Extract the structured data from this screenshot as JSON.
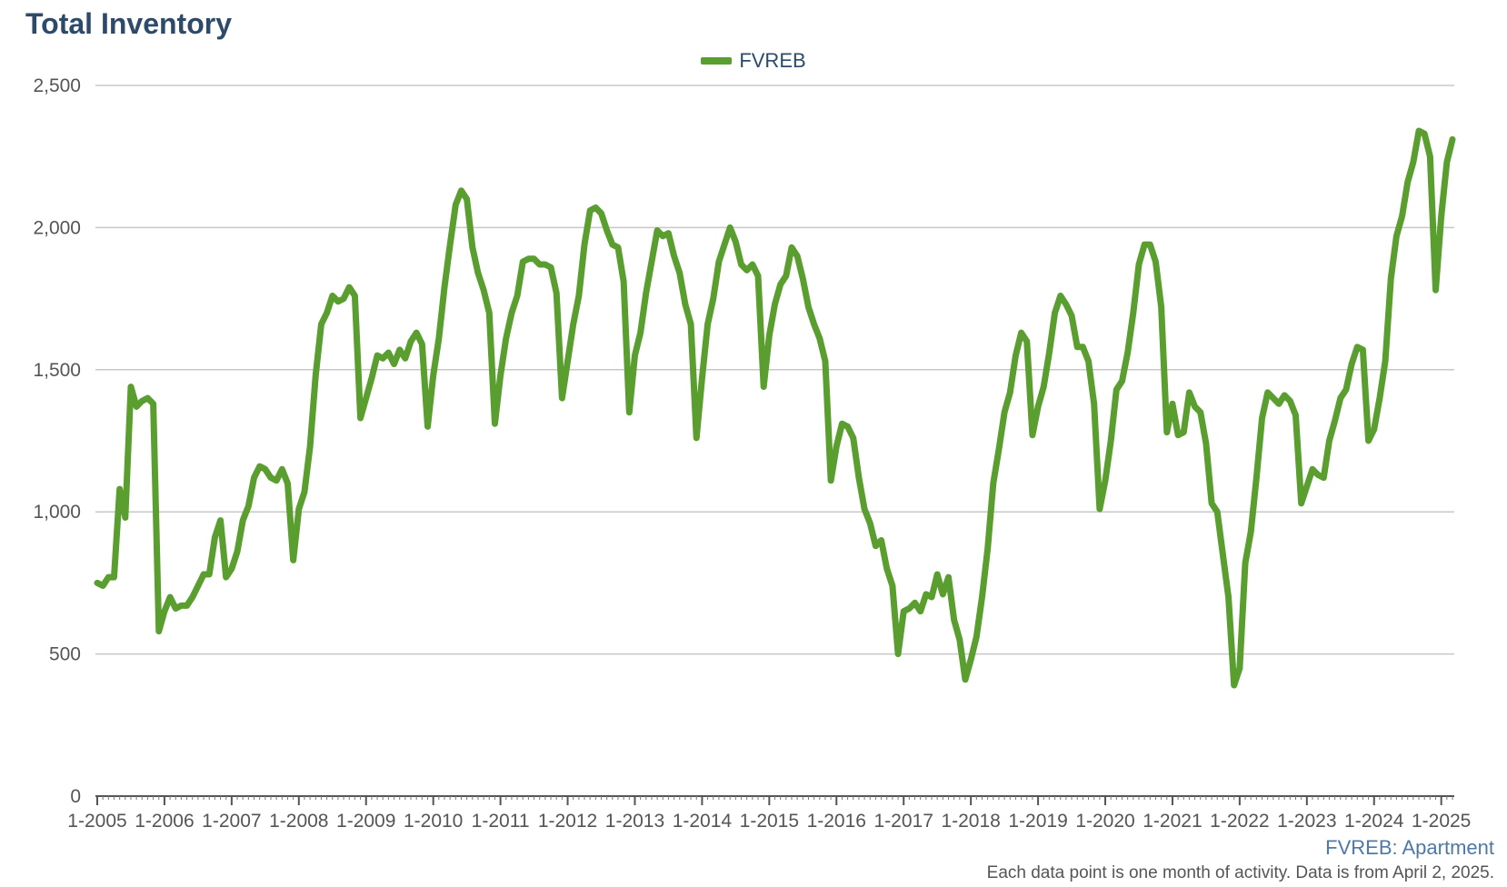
{
  "chart_data": {
    "type": "line",
    "title": "Total Inventory",
    "xlabel": "",
    "ylabel": "",
    "ylim": [
      0,
      2500
    ],
    "y_ticks": [
      0,
      500,
      1000,
      1500,
      2000,
      2500
    ],
    "y_tick_labels": [
      "0",
      "500",
      "1,000",
      "1,500",
      "2,000",
      "2,500"
    ],
    "x_tick_labels": [
      "1-2005",
      "1-2006",
      "1-2007",
      "1-2008",
      "1-2009",
      "1-2010",
      "1-2011",
      "1-2012",
      "1-2013",
      "1-2014",
      "1-2015",
      "1-2016",
      "1-2017",
      "1-2018",
      "1-2019",
      "1-2020",
      "1-2021",
      "1-2022",
      "1-2023",
      "1-2024",
      "1-2025"
    ],
    "x_start": "2005-01",
    "x_end": "2025-03",
    "grid": true,
    "legend_position": "top-center",
    "color": "#5a9e2f",
    "series": [
      {
        "name": "FVREB",
        "values": [
          750,
          740,
          770,
          770,
          1080,
          980,
          1440,
          1370,
          1390,
          1400,
          1380,
          580,
          650,
          700,
          660,
          670,
          670,
          700,
          740,
          780,
          780,
          910,
          970,
          770,
          800,
          860,
          970,
          1020,
          1120,
          1160,
          1150,
          1120,
          1110,
          1150,
          1100,
          830,
          1010,
          1070,
          1230,
          1480,
          1660,
          1700,
          1760,
          1740,
          1750,
          1790,
          1760,
          1330,
          1400,
          1470,
          1550,
          1540,
          1560,
          1520,
          1570,
          1540,
          1600,
          1630,
          1590,
          1300,
          1480,
          1610,
          1790,
          1940,
          2080,
          2130,
          2100,
          1930,
          1840,
          1780,
          1700,
          1310,
          1480,
          1610,
          1700,
          1760,
          1880,
          1890,
          1890,
          1870,
          1870,
          1860,
          1770,
          1400,
          1530,
          1660,
          1760,
          1940,
          2060,
          2070,
          2050,
          1990,
          1940,
          1930,
          1810,
          1350,
          1550,
          1630,
          1770,
          1880,
          1990,
          1970,
          1980,
          1900,
          1840,
          1730,
          1660,
          1260,
          1470,
          1660,
          1750,
          1880,
          1940,
          2000,
          1950,
          1870,
          1850,
          1870,
          1830,
          1440,
          1620,
          1730,
          1800,
          1830,
          1930,
          1900,
          1820,
          1720,
          1660,
          1610,
          1530,
          1110,
          1230,
          1310,
          1300,
          1260,
          1120,
          1010,
          960,
          880,
          900,
          800,
          740,
          500,
          650,
          660,
          680,
          650,
          710,
          700,
          780,
          710,
          770,
          620,
          550,
          410,
          480,
          560,
          700,
          870,
          1100,
          1220,
          1350,
          1420,
          1550,
          1630,
          1600,
          1270,
          1370,
          1440,
          1560,
          1700,
          1760,
          1730,
          1690,
          1580,
          1580,
          1530,
          1380,
          1010,
          1110,
          1250,
          1430,
          1460,
          1560,
          1700,
          1870,
          1940,
          1940,
          1880,
          1720,
          1280,
          1380,
          1270,
          1280,
          1420,
          1370,
          1350,
          1240,
          1030,
          1000,
          850,
          700,
          390,
          450,
          820,
          930,
          1120,
          1330,
          1420,
          1400,
          1380,
          1410,
          1390,
          1340,
          1030,
          1090,
          1150,
          1130,
          1120,
          1250,
          1320,
          1400,
          1430,
          1520,
          1580,
          1570,
          1250,
          1290,
          1400,
          1530,
          1820,
          1970,
          2040,
          2160,
          2230,
          2340,
          2330,
          2250,
          1780,
          2040,
          2230,
          2310
        ]
      }
    ],
    "source_label": "FVREB: Apartment",
    "footnote": "Each data point is one month of activity. Data is from April 2, 2025."
  }
}
